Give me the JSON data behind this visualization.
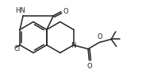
{
  "bg_color": "#ffffff",
  "line_color": "#222222",
  "line_width": 1.1,
  "font_size": 6.0,
  "xlim": [
    0.0,
    1.79
  ],
  "ylim": [
    0.0,
    0.97
  ]
}
